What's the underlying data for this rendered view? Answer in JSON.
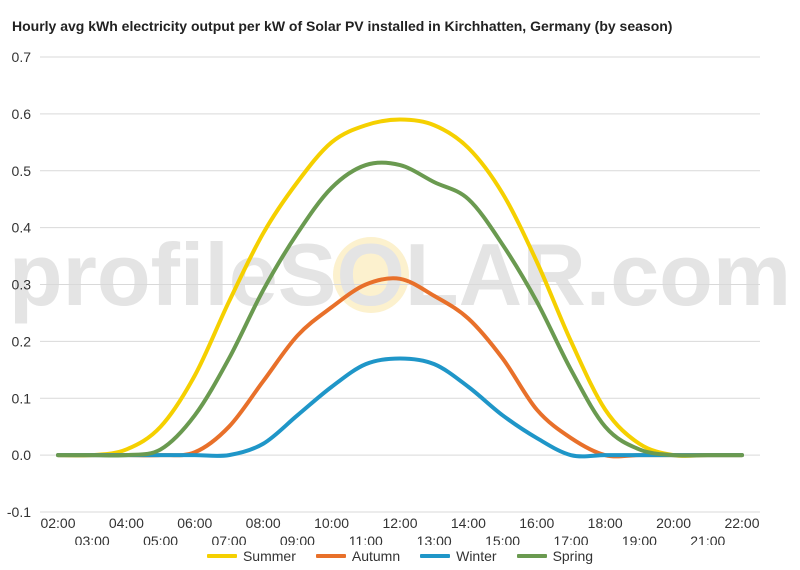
{
  "chart_data": {
    "type": "line",
    "title": "Hourly avg kWh electricity output per kW of Solar PV installed in Kirchhatten, Germany (by season)",
    "watermark": "profileSOLAR.com",
    "xlabel": "",
    "ylabel": "",
    "ylim": [
      -0.1,
      0.7
    ],
    "y_ticks": [
      "-0.1",
      "0.0",
      "0.1",
      "0.2",
      "0.3",
      "0.4",
      "0.5",
      "0.6",
      "0.7"
    ],
    "x": [
      "02:00",
      "03:00",
      "04:00",
      "05:00",
      "06:00",
      "07:00",
      "08:00",
      "09:00",
      "10:00",
      "11:00",
      "12:00",
      "13:00",
      "14:00",
      "15:00",
      "16:00",
      "17:00",
      "18:00",
      "19:00",
      "20:00",
      "21:00",
      "22:00"
    ],
    "grid": true,
    "legend": "bottom",
    "series": [
      {
        "name": "Summer",
        "color": "#f5d000",
        "values": [
          0.0,
          0.0,
          0.01,
          0.05,
          0.14,
          0.27,
          0.39,
          0.48,
          0.55,
          0.58,
          0.59,
          0.58,
          0.54,
          0.46,
          0.34,
          0.2,
          0.08,
          0.02,
          0.0,
          0.0,
          0.0
        ]
      },
      {
        "name": "Autumn",
        "color": "#e8702a",
        "values": [
          0.0,
          0.0,
          0.0,
          0.0,
          0.005,
          0.05,
          0.13,
          0.21,
          0.26,
          0.3,
          0.31,
          0.28,
          0.24,
          0.17,
          0.08,
          0.03,
          0.0,
          0.0,
          0.0,
          0.0,
          0.0
        ]
      },
      {
        "name": "Winter",
        "color": "#1f96c8",
        "values": [
          0.0,
          0.0,
          0.0,
          0.0,
          0.0,
          0.0,
          0.02,
          0.07,
          0.12,
          0.16,
          0.17,
          0.16,
          0.12,
          0.07,
          0.03,
          0.0,
          0.0,
          0.0,
          0.0,
          0.0,
          0.0
        ]
      },
      {
        "name": "Spring",
        "color": "#6a9a50",
        "values": [
          0.0,
          0.0,
          0.0,
          0.01,
          0.07,
          0.17,
          0.29,
          0.39,
          0.47,
          0.51,
          0.51,
          0.48,
          0.45,
          0.37,
          0.27,
          0.15,
          0.05,
          0.01,
          0.0,
          0.0,
          0.0
        ]
      }
    ]
  }
}
